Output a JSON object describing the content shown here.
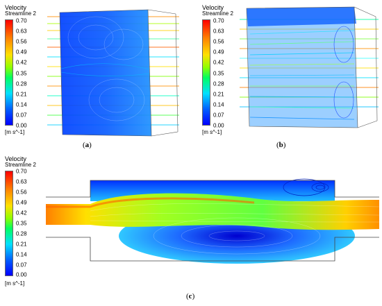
{
  "legend": {
    "title": "Velocity",
    "subtitle": "Streamline 2",
    "ticks": [
      "0.70",
      "0.63",
      "0.56",
      "0.49",
      "0.42",
      "0.35",
      "0.28",
      "0.21",
      "0.14",
      "0.07",
      "0.00"
    ],
    "unit": "[m s^-1]"
  },
  "captions": {
    "a": "a",
    "b": "b",
    "c": "c"
  }
}
